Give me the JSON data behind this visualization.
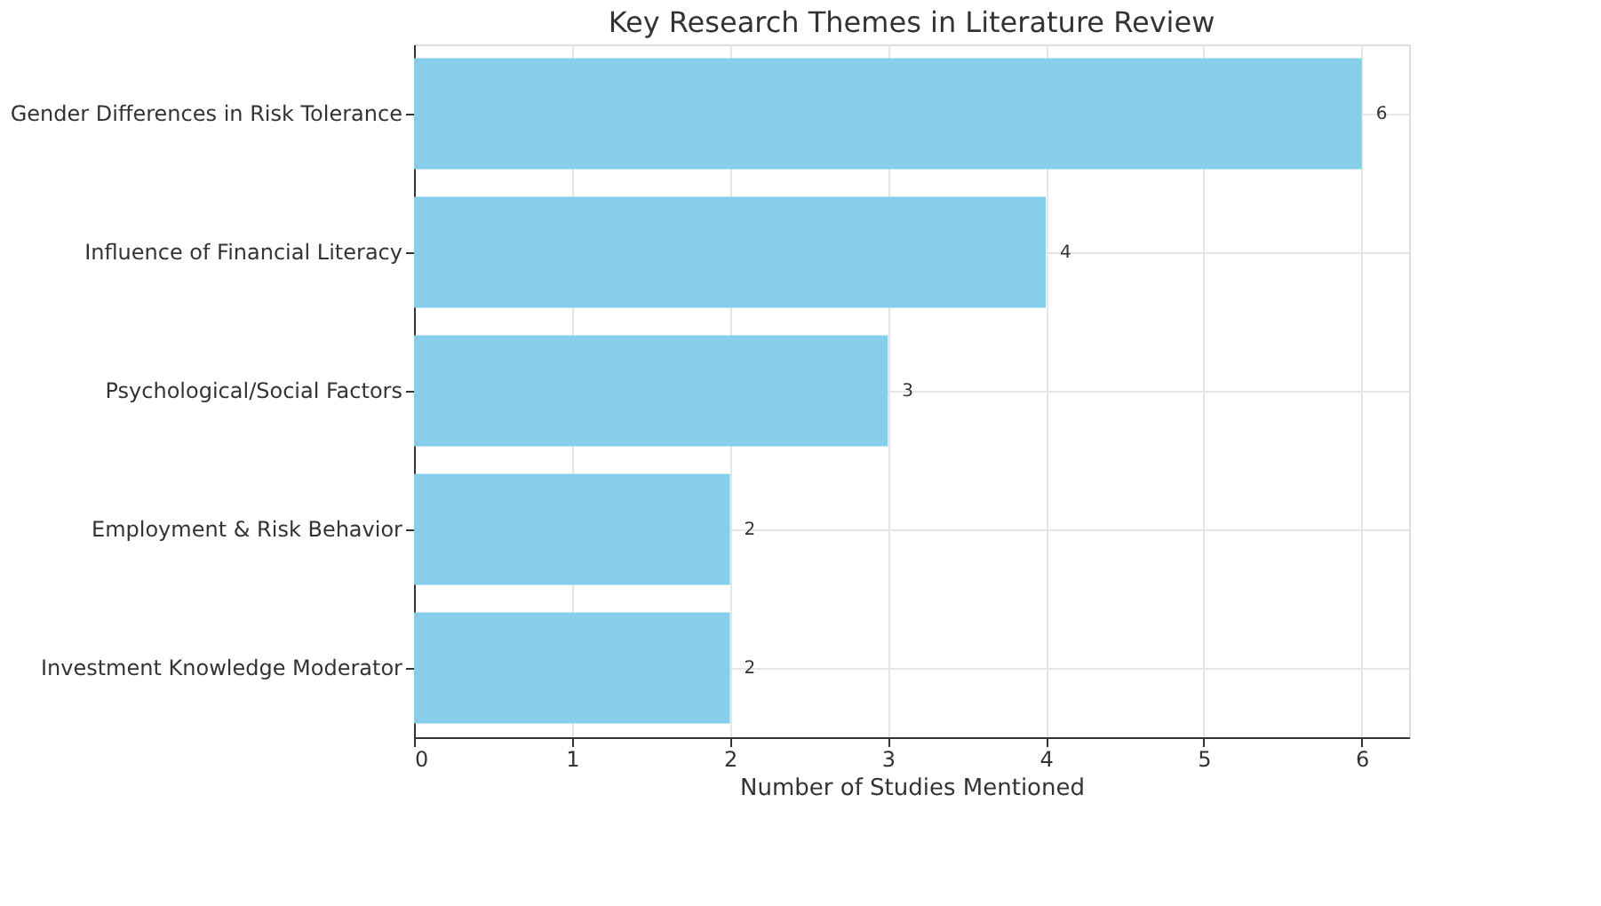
{
  "chart_data": {
    "type": "bar",
    "orientation": "horizontal",
    "title": "Key Research Themes in Literature Review",
    "xlabel": "Number of Studies Mentioned",
    "categories": [
      "Gender Differences in Risk Tolerance",
      "Influence of Financial Literacy",
      "Psychological/Social Factors",
      "Employment & Risk Behavior",
      "Investment Knowledge Moderator"
    ],
    "values": [
      6,
      4,
      3,
      2,
      2
    ],
    "color": "#87ceeb",
    "xlim": [
      0,
      6.3
    ],
    "xticks": [
      0,
      1,
      2,
      3,
      4,
      5,
      6
    ],
    "grid": true,
    "data_labels": true
  }
}
